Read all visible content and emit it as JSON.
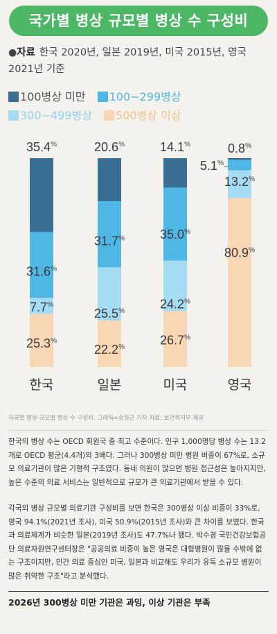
{
  "title": "국가별 병상 규모별 병상 수 구성비",
  "source": {
    "bullet": "●",
    "label": "자료",
    "text": "한국 2020년, 일본 2019년, 미국 2015년, 영국 2021년 기준"
  },
  "colors": {
    "lt100": "#3b6e93",
    "100_299": "#4fb7e6",
    "300_499": "#a6dcf3",
    "500plus": "#f8d7b5",
    "title_bg": "#4cb866"
  },
  "chart_data": {
    "type": "bar",
    "stacked": true,
    "unit": "%",
    "categories": [
      "한국",
      "일본",
      "미국",
      "영국"
    ],
    "series": [
      {
        "name": "100병상 미만",
        "values": [
          35.4,
          20.6,
          14.1,
          0.8
        ]
      },
      {
        "name": "100~299병상",
        "values": [
          31.6,
          31.7,
          35.0,
          5.1
        ]
      },
      {
        "name": "300~499병상",
        "values": [
          7.7,
          25.5,
          24.2,
          13.2
        ]
      },
      {
        "name": "500병상 이상",
        "values": [
          25.3,
          22.2,
          26.7,
          80.9
        ]
      }
    ],
    "legend_position": "top-left"
  },
  "credit": "각국별 병상 규모별 병상 수 구성비. 그래픽=송정근 기자 자료: 보건복지부 제공",
  "paragraphs": [
    "한국의 병상 수는 OECD 회원국 중 최고 수준이다. 인구 1,000명당 병상 수는 13.2개로 OECD 평균(4.4개)의 3배다. 그러나 300병상 미만 병원 비중이 67%로, 소규모 의료기관이 많은 기형적 구조였다. 동네 의원이 많으면 병원 접근성은 높아지지만, 높은 수준의 의료 서비스는 일반적으로 규모가 큰 의료기관에서 받을 수 있다.",
    "각국의 병상 규모별 의료기관 구성비를 보면 한국은 300병상 이상 비중이 33%로, 영국 94.1%(2021년 조사), 미국 50.9%(2015년 조사)와 큰 차이를 보였다. 한국과 의료체계가 비슷한 일본(2019년 조사)도 47.7%나 됐다. 박수경 국민건강보험공단 의료자원연구센터장은 \"공공의료 비중이 높은 영국은 대형병원이 많을 수밖에 없는 구조이지만, 민간 의료 중심인 미국, 일본과 비교해도 우리가 유독 소규모 병원이 많은 취약한 구조\"라고 분석했다."
  ],
  "bottom_heading": "2026년 300병상 미만 기관은 과잉, 이상 기관은 부족"
}
